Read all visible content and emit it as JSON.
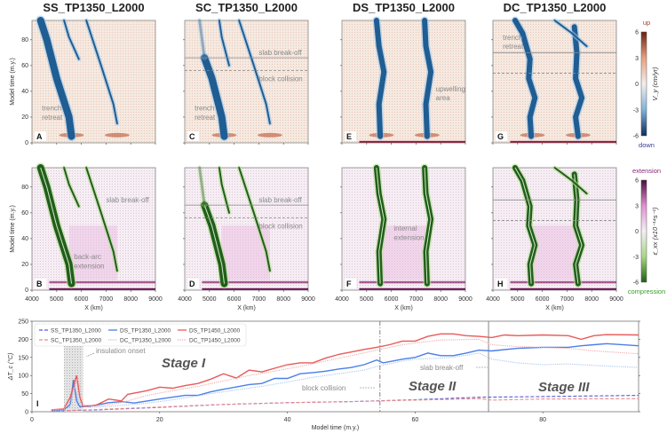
{
  "panels": [
    {
      "id": "A",
      "title": "SS_TP1350_L2000",
      "row": "top",
      "annotations": [
        "trench",
        "retreat"
      ]
    },
    {
      "id": "C",
      "title": "SC_TP1350_L2000",
      "row": "top",
      "annotations": [
        "slab break-off",
        "block collision",
        "trench",
        "retreat"
      ]
    },
    {
      "id": "E",
      "title": "DS_TP1350_L2000",
      "row": "top",
      "annotations": [
        "upwelling",
        "area"
      ]
    },
    {
      "id": "G",
      "title": "DC_TP1350_L2000",
      "row": "top",
      "annotations": [
        "trench",
        "retreat"
      ]
    },
    {
      "id": "B",
      "title": "",
      "row": "bottom",
      "annotations": [
        "slab break-off",
        "back-arc",
        "extension"
      ]
    },
    {
      "id": "D",
      "title": "",
      "row": "bottom",
      "annotations": [
        "slab break-off",
        "block collision"
      ]
    },
    {
      "id": "F",
      "title": "",
      "row": "bottom",
      "annotations": [
        "internal",
        "extension"
      ]
    },
    {
      "id": "H",
      "title": "",
      "row": "bottom",
      "annotations": []
    }
  ],
  "panel_axes": {
    "ylabel": "Model time (m.y.)",
    "xlabel": "X (km)",
    "xticks": [
      "4000",
      "5000",
      "6000",
      "7000",
      "8000",
      "9000"
    ],
    "yticks": [
      "0",
      "20",
      "40",
      "60",
      "80"
    ]
  },
  "colorbar_top": {
    "top_label": "up",
    "bottom_label": "down",
    "label": "V_y (cm/yr)",
    "ticks": [
      "6",
      "3",
      "0",
      "-3",
      "-6"
    ],
    "colors": [
      "#6b1f0f",
      "#e9a07f",
      "#f3eeee",
      "#7fb3d8",
      "#0c2c5e"
    ]
  },
  "colorbar_bottom": {
    "top_label": "extension",
    "bottom_label": "compression",
    "label": "ε̇_xx (x10⁻¹⁴s⁻¹)",
    "ticks": [
      "6",
      "3",
      "0",
      "-3",
      "-6"
    ],
    "colors": [
      "#4a0f3a",
      "#e38fd2",
      "#f4eef4",
      "#a8d884",
      "#1f5f14"
    ]
  },
  "chart_data": {
    "type": "line",
    "panel_label": "I",
    "xlabel": "Model time (m.y.)",
    "ylabel": "ΔT_c (°C)",
    "xlim": [
      0,
      95
    ],
    "ylim": [
      0,
      250
    ],
    "xticks": [
      0,
      20,
      40,
      60,
      80
    ],
    "yticks": [
      0,
      50,
      100,
      150,
      200,
      250
    ],
    "legend_placement": "top-left",
    "series": [
      {
        "name": "SS_TP1350_L2000",
        "color": "#5a5ad6",
        "style": "dashed",
        "x": [
          3,
          10,
          20,
          30,
          40,
          50,
          60,
          70,
          80,
          95
        ],
        "y": [
          2,
          5,
          12,
          20,
          25,
          28,
          33,
          40,
          42,
          45
        ]
      },
      {
        "name": "SC_TP1350_L2000",
        "color": "#e88a8a",
        "style": "dashed",
        "x": [
          3,
          10,
          20,
          30,
          40,
          50,
          60,
          70,
          72,
          80,
          95
        ],
        "y": [
          2,
          6,
          13,
          20,
          25,
          28,
          32,
          36,
          32,
          35,
          36
        ]
      },
      {
        "name": "DS_TP1350_L2000",
        "color": "#4a7ee8",
        "style": "solid",
        "x": [
          3,
          5,
          6,
          6.5,
          7,
          7.5,
          9,
          12,
          14,
          16,
          20,
          24,
          26,
          28,
          30,
          34,
          36,
          38,
          40,
          42,
          44,
          46,
          48,
          50,
          52,
          54,
          55,
          58,
          60,
          62,
          64,
          66,
          68,
          70,
          72,
          76,
          80,
          84,
          86,
          88,
          90,
          95
        ],
        "y": [
          3,
          5,
          20,
          88,
          30,
          14,
          15,
          25,
          28,
          24,
          35,
          45,
          45,
          55,
          62,
          75,
          78,
          92,
          92,
          105,
          108,
          112,
          118,
          122,
          130,
          143,
          135,
          145,
          150,
          162,
          155,
          155,
          162,
          170,
          168,
          175,
          178,
          178,
          182,
          185,
          188,
          182
        ]
      },
      {
        "name": "DC_TP1350_L2000",
        "color": "#a9c6f2",
        "style": "dotted",
        "x": [
          3,
          5,
          6,
          6.7,
          7.5,
          9,
          12,
          16,
          20,
          24,
          28,
          32,
          36,
          40,
          44,
          48,
          52,
          54,
          58,
          60,
          64,
          66,
          70,
          72,
          76,
          80,
          84,
          88,
          95
        ],
        "y": [
          3,
          5,
          15,
          70,
          18,
          12,
          15,
          20,
          28,
          38,
          50,
          60,
          70,
          82,
          95,
          105,
          115,
          125,
          140,
          145,
          148,
          150,
          162,
          145,
          135,
          130,
          132,
          128,
          122
        ]
      },
      {
        "name": "DS_TP1450_L2000",
        "color": "#e85a5a",
        "style": "solid",
        "x": [
          3,
          5,
          6,
          7,
          7.5,
          8,
          10,
          12,
          14,
          15,
          18,
          20,
          22,
          24,
          26,
          28,
          30,
          32,
          34,
          36,
          38,
          40,
          42,
          44,
          46,
          48,
          50,
          52,
          54,
          56,
          58,
          60,
          62,
          64,
          66,
          68,
          70,
          72,
          74,
          76,
          80,
          84,
          86,
          88,
          90,
          95
        ],
        "y": [
          5,
          8,
          40,
          100,
          40,
          15,
          18,
          35,
          30,
          48,
          58,
          68,
          65,
          72,
          78,
          90,
          105,
          93,
          115,
          110,
          120,
          130,
          135,
          135,
          148,
          158,
          165,
          172,
          178,
          185,
          195,
          195,
          208,
          215,
          215,
          210,
          208,
          205,
          212,
          210,
          212,
          210,
          200,
          210,
          213,
          212
        ]
      },
      {
        "name": "DC_TP1450_L2000",
        "color": "#f2aaaa",
        "style": "dotted",
        "x": [
          3,
          5,
          6,
          7.2,
          8,
          10,
          14,
          18,
          22,
          26,
          30,
          34,
          38,
          42,
          46,
          50,
          54,
          58,
          60,
          64,
          70,
          72,
          76,
          80,
          84,
          88,
          95
        ],
        "y": [
          5,
          8,
          30,
          95,
          20,
          15,
          25,
          45,
          58,
          70,
          85,
          100,
          112,
          125,
          140,
          155,
          170,
          185,
          190,
          198,
          200,
          185,
          180,
          178,
          175,
          168,
          160
        ]
      }
    ],
    "annotations": {
      "stage1": "Stage I",
      "stage2": "Stage II",
      "stage3": "Stage III",
      "insulation": "insulation onset",
      "block_collision": "block collision",
      "slab_breakoff": "slab break-off"
    },
    "vlines": [
      {
        "x": 54.5,
        "style": "dashed"
      },
      {
        "x": 71.5,
        "style": "solid"
      }
    ],
    "shaded_range": [
      5,
      8
    ]
  }
}
